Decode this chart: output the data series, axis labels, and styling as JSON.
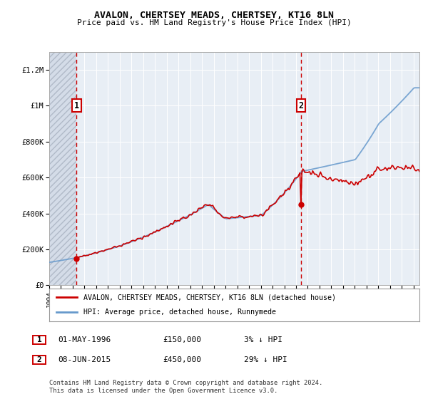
{
  "title": "AVALON, CHERTSEY MEADS, CHERTSEY, KT16 8LN",
  "subtitle": "Price paid vs. HM Land Registry's House Price Index (HPI)",
  "ylabel_ticks": [
    "£0",
    "£200K",
    "£400K",
    "£600K",
    "£800K",
    "£1M",
    "£1.2M"
  ],
  "ytick_values": [
    0,
    200000,
    400000,
    600000,
    800000,
    1000000,
    1200000
  ],
  "ylim": [
    0,
    1300000
  ],
  "xlim_start": 1994.0,
  "xlim_end": 2025.5,
  "sale1_year": 1996.33,
  "sale1_price": 150000,
  "sale2_year": 2015.44,
  "sale2_price": 450000,
  "sale1_label": "1",
  "sale2_label": "2",
  "legend_label_red": "AVALON, CHERTSEY MEADS, CHERTSEY, KT16 8LN (detached house)",
  "legend_label_blue": "HPI: Average price, detached house, Runnymede",
  "footnote": "Contains HM Land Registry data © Crown copyright and database right 2024.\nThis data is licensed under the Open Government Licence v3.0.",
  "red_color": "#cc0000",
  "blue_color": "#6699cc",
  "bg_plot": "#e8eef5",
  "bg_hatch": "#d4dce8",
  "grid_color": "#ffffff",
  "label1_date": "01-MAY-1996",
  "label1_price": "£150,000",
  "label1_pct": "3% ↓ HPI",
  "label2_date": "08-JUN-2015",
  "label2_price": "£450,000",
  "label2_pct": "29% ↓ HPI"
}
